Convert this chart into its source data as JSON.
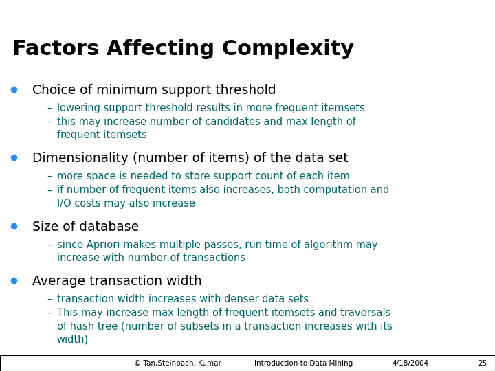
{
  "title": "Factors Affecting Complexity",
  "title_color": "#000000",
  "title_fontsize": 22,
  "bg_color": "#ffffff",
  "bar1_color": "#29C8E0",
  "bar2_color": "#9B009B",
  "bullet_color": "#1E90FF",
  "sub_text_color": "#006666",
  "text_color": "#000000",
  "footer_text_left": "© Tan,Steinbach, Kumar",
  "footer_text_mid": "Introduction to Data Mining",
  "footer_text_right": "4/18/2004",
  "footer_text_num": "25",
  "content": [
    {
      "text": "Choice of minimum support threshold",
      "subs": [
        "lowering support threshold results in more frequent itemsets",
        "this may increase number of candidates and max length of\nfrequent itemsets"
      ]
    },
    {
      "text": "Dimensionality (number of items) of the data set",
      "subs": [
        "more space is needed to store support count of each item",
        "if number of frequent items also increases, both computation and\nI/O costs may also increase"
      ]
    },
    {
      "text": "Size of database",
      "subs": [
        "since Apriori makes multiple passes, run time of algorithm may\nincrease with number of transactions"
      ]
    },
    {
      "text": "Average transaction width",
      "subs": [
        "transaction width increases with denser data sets",
        "This may increase max length of frequent itemsets and traversals\nof hash tree (number of subsets in a transaction increases with its\nwidth)"
      ]
    }
  ]
}
